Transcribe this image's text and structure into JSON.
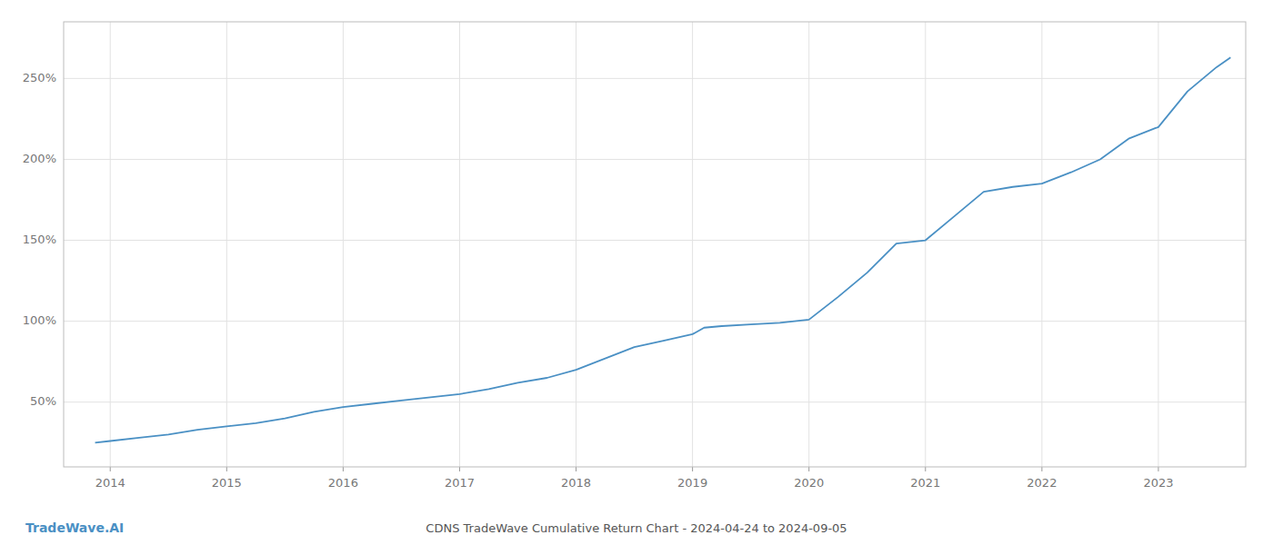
{
  "chart_data": {
    "type": "line",
    "title": "CDNS TradeWave Cumulative Return Chart - 2024-04-24 to 2024-09-05",
    "annotations": [
      {
        "text": "TradeWave.AI"
      }
    ],
    "x": [
      2013.87,
      2014.0,
      2014.25,
      2014.5,
      2014.75,
      2015.0,
      2015.25,
      2015.5,
      2015.75,
      2016.0,
      2016.25,
      2016.5,
      2016.75,
      2017.0,
      2017.25,
      2017.5,
      2017.75,
      2018.0,
      2018.25,
      2018.5,
      2018.75,
      2019.0,
      2019.1,
      2019.25,
      2019.5,
      2019.75,
      2020.0,
      2020.25,
      2020.5,
      2020.75,
      2021.0,
      2021.25,
      2021.5,
      2021.75,
      2022.0,
      2022.25,
      2022.5,
      2022.75,
      2023.0,
      2023.25,
      2023.5,
      2023.62
    ],
    "values": [
      25,
      26,
      28,
      30,
      33,
      35,
      37,
      40,
      44,
      47,
      49,
      51,
      53,
      55,
      58,
      62,
      65,
      70,
      77,
      84,
      88,
      92,
      96,
      97,
      98,
      99,
      101,
      115,
      130,
      148,
      150,
      165,
      180,
      183,
      185,
      192,
      200,
      213,
      220,
      242,
      257,
      263
    ],
    "color": "#4a90c4",
    "xlim": [
      2013.6,
      2023.75
    ],
    "xticks": [
      2014,
      2015,
      2016,
      2017,
      2018,
      2019,
      2020,
      2021,
      2022,
      2023
    ],
    "ylim": [
      10,
      285
    ],
    "yticks": [
      {
        "value": 50,
        "label": "50%"
      },
      {
        "value": 100,
        "label": "100%"
      },
      {
        "value": 150,
        "label": "150%"
      },
      {
        "value": 200,
        "label": "200%"
      },
      {
        "value": 250,
        "label": "250%"
      }
    ],
    "grid": true
  }
}
